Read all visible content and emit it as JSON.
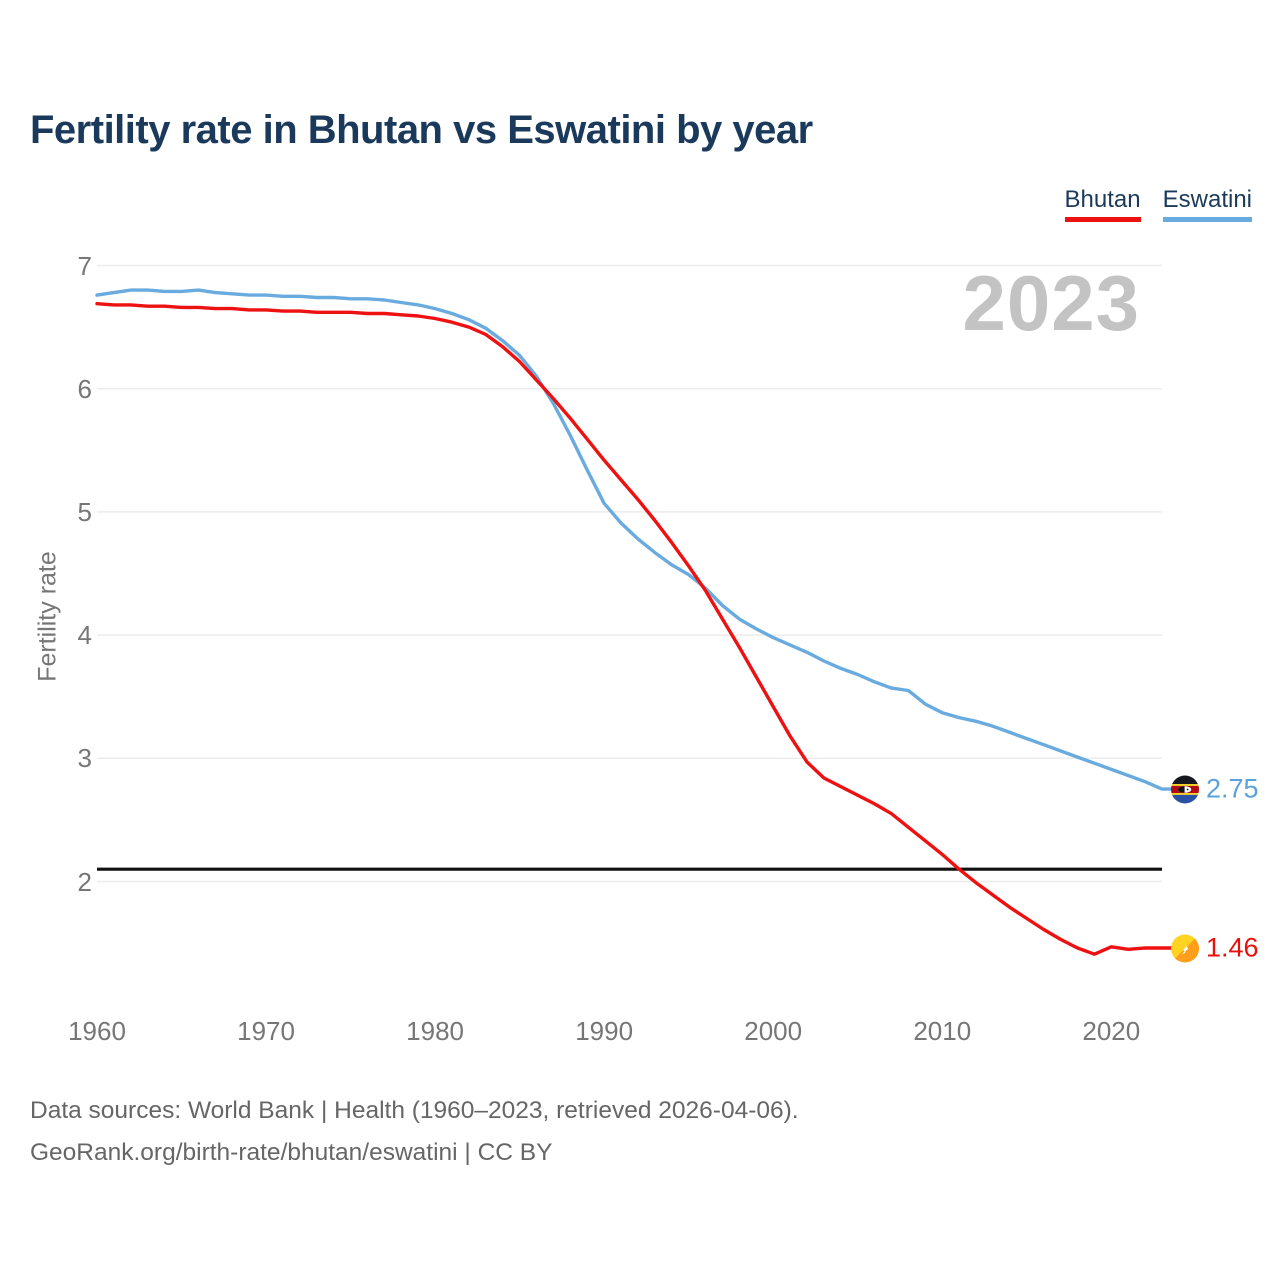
{
  "page": {
    "title": "Fertility rate in Bhutan vs Eswatini by year"
  },
  "legend": [
    {
      "label": "Bhutan",
      "color": "#ee1111"
    },
    {
      "label": "Eswatini",
      "color": "#6aabdf"
    }
  ],
  "watermark_year": "2023",
  "axes": {
    "y_label": "Fertility rate",
    "y_ticks": [
      7,
      6,
      5,
      4,
      3,
      2
    ],
    "x_ticks": [
      1960,
      1970,
      1980,
      1990,
      2000,
      2010,
      2020
    ]
  },
  "end_labels": [
    {
      "series": "Eswatini",
      "value": "2.75",
      "flag": "eswatini-flag"
    },
    {
      "series": "Bhutan",
      "value": "1.46",
      "flag": "bhutan-flag"
    }
  ],
  "footer": {
    "line1": "Data sources: World Bank | Health (1960–2023, retrieved 2026-04-06).",
    "line2": "GeoRank.org/birth-rate/bhutan/eswatini | CC BY"
  },
  "chart_data": {
    "type": "line",
    "title": "Fertility rate in Bhutan vs Eswatini by year",
    "xlabel": "",
    "ylabel": "Fertility rate",
    "ylim": [
      1.2,
      7.1
    ],
    "xlim": [
      1960,
      2023
    ],
    "grid": true,
    "legend_position": "top-right",
    "replacement_line": 2.1,
    "x": [
      1960,
      1961,
      1962,
      1963,
      1964,
      1965,
      1966,
      1967,
      1968,
      1969,
      1970,
      1971,
      1972,
      1973,
      1974,
      1975,
      1976,
      1977,
      1978,
      1979,
      1980,
      1981,
      1982,
      1983,
      1984,
      1985,
      1986,
      1987,
      1988,
      1989,
      1990,
      1991,
      1992,
      1993,
      1994,
      1995,
      1996,
      1997,
      1998,
      1999,
      2000,
      2001,
      2002,
      2003,
      2004,
      2005,
      2006,
      2007,
      2008,
      2009,
      2010,
      2011,
      2012,
      2013,
      2014,
      2015,
      2016,
      2017,
      2018,
      2019,
      2020,
      2021,
      2022,
      2023
    ],
    "series": [
      {
        "name": "Bhutan",
        "color": "#ee1111",
        "end_value": 1.46,
        "values": [
          6.69,
          6.68,
          6.68,
          6.67,
          6.67,
          6.66,
          6.66,
          6.65,
          6.65,
          6.64,
          6.64,
          6.63,
          6.63,
          6.62,
          6.62,
          6.62,
          6.61,
          6.61,
          6.6,
          6.59,
          6.57,
          6.54,
          6.5,
          6.44,
          6.34,
          6.22,
          6.07,
          5.92,
          5.76,
          5.59,
          5.42,
          5.26,
          5.1,
          4.93,
          4.75,
          4.56,
          4.36,
          4.13,
          3.9,
          3.66,
          3.42,
          3.18,
          2.97,
          2.84,
          2.77,
          2.7,
          2.63,
          2.55,
          2.44,
          2.33,
          2.22,
          2.1,
          1.99,
          1.89,
          1.79,
          1.7,
          1.61,
          1.53,
          1.46,
          1.41,
          1.47,
          1.45,
          1.46,
          1.46
        ]
      },
      {
        "name": "Eswatini",
        "color": "#6aabdf",
        "end_value": 2.75,
        "values": [
          6.76,
          6.78,
          6.8,
          6.8,
          6.79,
          6.79,
          6.8,
          6.78,
          6.77,
          6.76,
          6.76,
          6.75,
          6.75,
          6.74,
          6.74,
          6.73,
          6.73,
          6.72,
          6.7,
          6.68,
          6.65,
          6.61,
          6.56,
          6.49,
          6.39,
          6.27,
          6.1,
          5.88,
          5.62,
          5.34,
          5.07,
          4.91,
          4.78,
          4.67,
          4.57,
          4.49,
          4.38,
          4.24,
          4.13,
          4.05,
          3.98,
          3.92,
          3.86,
          3.79,
          3.73,
          3.68,
          3.62,
          3.57,
          3.55,
          3.44,
          3.37,
          3.33,
          3.3,
          3.26,
          3.21,
          3.16,
          3.11,
          3.06,
          3.01,
          2.96,
          2.91,
          2.86,
          2.81,
          2.75
        ]
      }
    ]
  }
}
